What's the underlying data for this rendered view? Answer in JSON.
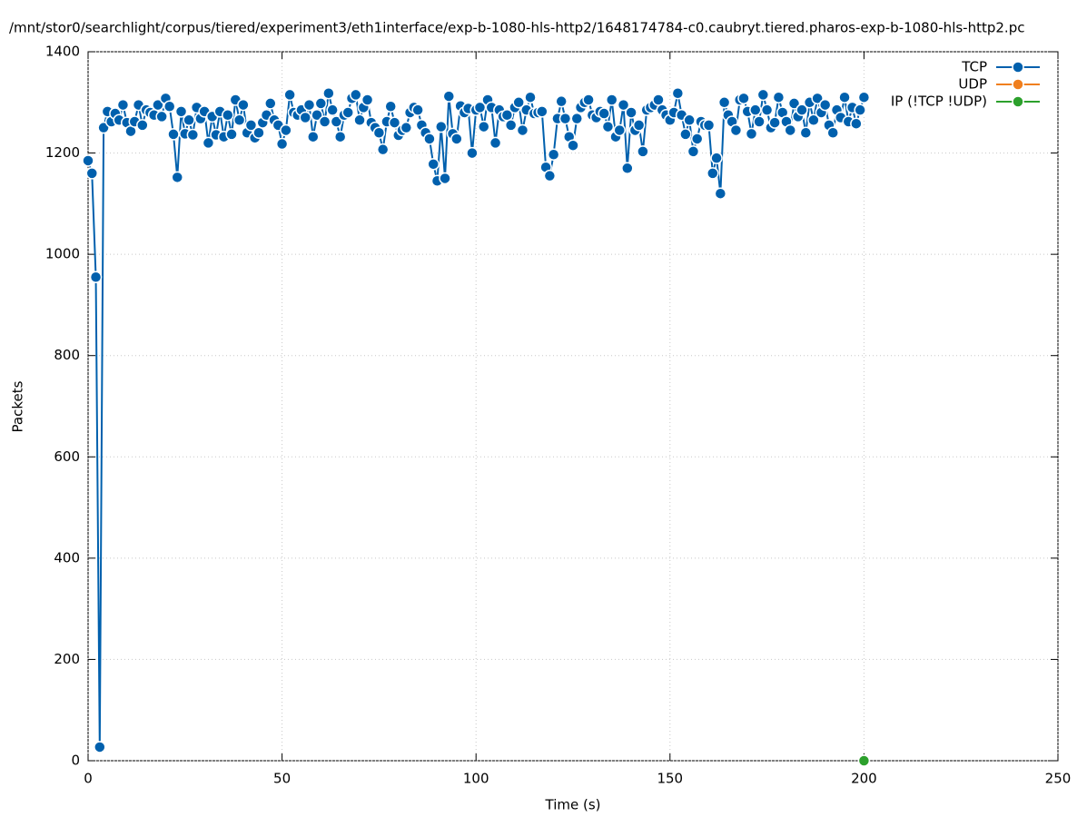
{
  "chart_data": {
    "type": "line",
    "title": "/mnt/stor0/searchlight/corpus/tiered/experiment3/eth1interface/exp-b-1080-hls-http2/1648174784-c0.caubryt.tiered.pharos-exp-b-1080-hls-http2.pc",
    "x_label": "Time (s)",
    "y_label": "Packets",
    "xlim": [
      0,
      250
    ],
    "xticks": [
      0,
      50,
      100,
      150,
      200,
      250
    ],
    "ylim": [
      0,
      1400
    ],
    "yticks": [
      0,
      200,
      400,
      600,
      800,
      1000,
      1200,
      1400
    ],
    "grid": true,
    "legend": "top-right",
    "series": [
      {
        "name": "TCP",
        "color": "#0060ad",
        "x": [
          0,
          1,
          2,
          3,
          4,
          5,
          6,
          7,
          8,
          9,
          10,
          11,
          12,
          13,
          14,
          15,
          16,
          17,
          18,
          19,
          20,
          21,
          22,
          23,
          24,
          25,
          26,
          27,
          28,
          29,
          30,
          31,
          32,
          33,
          34,
          35,
          36,
          37,
          38,
          39,
          40,
          41,
          42,
          43,
          44,
          45,
          46,
          47,
          48,
          49,
          50,
          51,
          52,
          53,
          54,
          55,
          56,
          57,
          58,
          59,
          60,
          61,
          62,
          63,
          64,
          65,
          66,
          67,
          68,
          69,
          70,
          71,
          72,
          73,
          74,
          75,
          76,
          77,
          78,
          79,
          80,
          81,
          82,
          83,
          84,
          85,
          86,
          87,
          88,
          89,
          90,
          91,
          92,
          93,
          94,
          95,
          96,
          97,
          98,
          99,
          100,
          101,
          102,
          103,
          104,
          105,
          106,
          107,
          108,
          109,
          110,
          111,
          112,
          113,
          114,
          115,
          116,
          117,
          118,
          119,
          120,
          121,
          122,
          123,
          124,
          125,
          126,
          127,
          128,
          129,
          130,
          131,
          132,
          133,
          134,
          135,
          136,
          137,
          138,
          139,
          140,
          141,
          142,
          143,
          144,
          145,
          146,
          147,
          148,
          149,
          150,
          151,
          152,
          153,
          154,
          155,
          156,
          157,
          158,
          159,
          160,
          161,
          162,
          163,
          164,
          165,
          166,
          167,
          168,
          169,
          170,
          171,
          172,
          173,
          174,
          175,
          176,
          177,
          178,
          179,
          180,
          181,
          182,
          183,
          184,
          185,
          186,
          187,
          188,
          189,
          190,
          191,
          192,
          193,
          194,
          195,
          196,
          197,
          198,
          199,
          200
        ],
        "values": [
          1185,
          1160,
          955,
          27,
          1250,
          1282,
          1262,
          1278,
          1265,
          1295,
          1260,
          1243,
          1262,
          1295,
          1255,
          1285,
          1280,
          1275,
          1295,
          1272,
          1308,
          1292,
          1237,
          1152,
          1282,
          1238,
          1265,
          1236,
          1290,
          1268,
          1282,
          1220,
          1272,
          1236,
          1282,
          1232,
          1275,
          1237,
          1305,
          1265,
          1295,
          1240,
          1255,
          1230,
          1240,
          1260,
          1275,
          1298,
          1265,
          1255,
          1218,
          1245,
          1315,
          1280,
          1275,
          1285,
          1270,
          1295,
          1232,
          1275,
          1298,
          1262,
          1318,
          1285,
          1262,
          1232,
          1275,
          1280,
          1308,
          1315,
          1265,
          1290,
          1305,
          1260,
          1250,
          1240,
          1207,
          1262,
          1292,
          1260,
          1235,
          1245,
          1250,
          1280,
          1290,
          1285,
          1255,
          1240,
          1228,
          1178,
          1145,
          1252,
          1150,
          1312,
          1238,
          1228,
          1293,
          1280,
          1288,
          1200,
          1285,
          1290,
          1252,
          1305,
          1290,
          1220,
          1285,
          1272,
          1275,
          1255,
          1290,
          1300,
          1245,
          1285,
          1310,
          1278,
          1280,
          1282,
          1172,
          1155,
          1197,
          1268,
          1302,
          1268,
          1232,
          1215,
          1268,
          1290,
          1300,
          1305,
          1275,
          1270,
          1282,
          1278,
          1252,
          1305,
          1232,
          1245,
          1295,
          1170,
          1280,
          1245,
          1255,
          1203,
          1285,
          1290,
          1295,
          1305,
          1285,
          1275,
          1265,
          1280,
          1318,
          1275,
          1237,
          1265,
          1203,
          1228,
          1262,
          1255,
          1255,
          1160,
          1190,
          1120,
          1300,
          1275,
          1262,
          1245,
          1305,
          1308,
          1282,
          1238,
          1285,
          1262,
          1315,
          1285,
          1250,
          1260,
          1310,
          1280,
          1262,
          1245,
          1298,
          1272,
          1285,
          1240,
          1300,
          1265,
          1308,
          1280,
          1295,
          1255,
          1240,
          1285,
          1270,
          1310,
          1262,
          1290,
          1258,
          1285,
          1310
        ]
      },
      {
        "name": "UDP",
        "color": "#f07f1e",
        "x": [
          200
        ],
        "values": [
          0
        ]
      },
      {
        "name": "IP (!TCP  !UDP)",
        "color": "#2ca02c",
        "x": [
          200
        ],
        "values": [
          0
        ]
      }
    ]
  }
}
